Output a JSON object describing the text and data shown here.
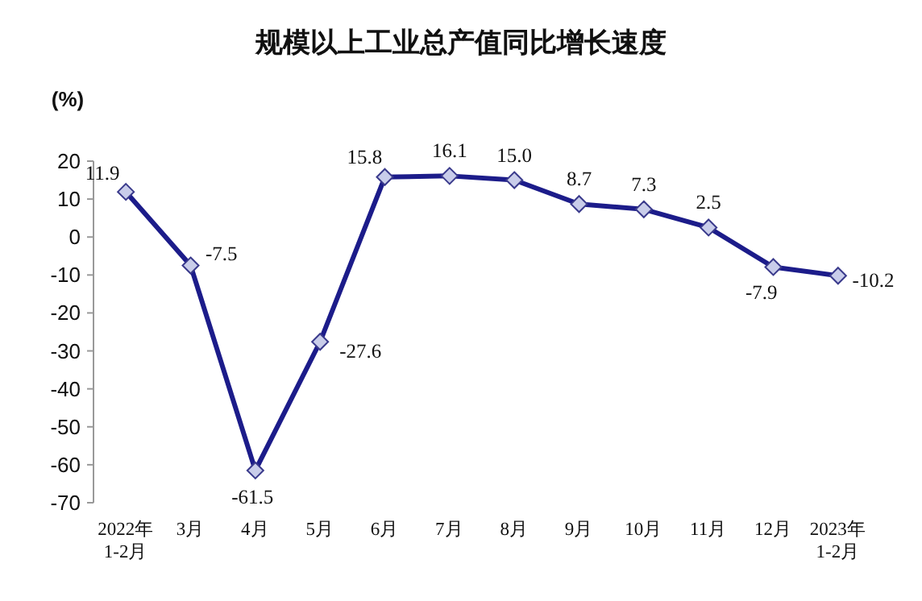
{
  "chart_data": {
    "type": "line",
    "title": "规模以上工业总产值同比增长速度",
    "ylabel": "(%)",
    "categories": [
      "2022年\n1-2月",
      "3月",
      "4月",
      "5月",
      "6月",
      "7月",
      "8月",
      "9月",
      "10月",
      "11月",
      "12月",
      "2023年\n1-2月"
    ],
    "series": [
      {
        "color": "#1c1c8a",
        "values": [
          11.9,
          -7.5,
          -61.5,
          -27.6,
          15.8,
          16.1,
          15.0,
          8.7,
          7.3,
          2.5,
          -7.9,
          -10.2
        ],
        "value_labels": [
          "11.9",
          "-7.5",
          "-61.5",
          "-27.6",
          "15.8",
          "16.1",
          "15.0",
          "8.7",
          "7.3",
          "2.5",
          "-7.9",
          "-10.2"
        ]
      }
    ],
    "ylim": [
      -70,
      20
    ],
    "yticks": [
      -70,
      -60,
      -50,
      -40,
      -30,
      -20,
      -10,
      0,
      10,
      20
    ],
    "marker": "diamond",
    "line_style": "solid"
  }
}
